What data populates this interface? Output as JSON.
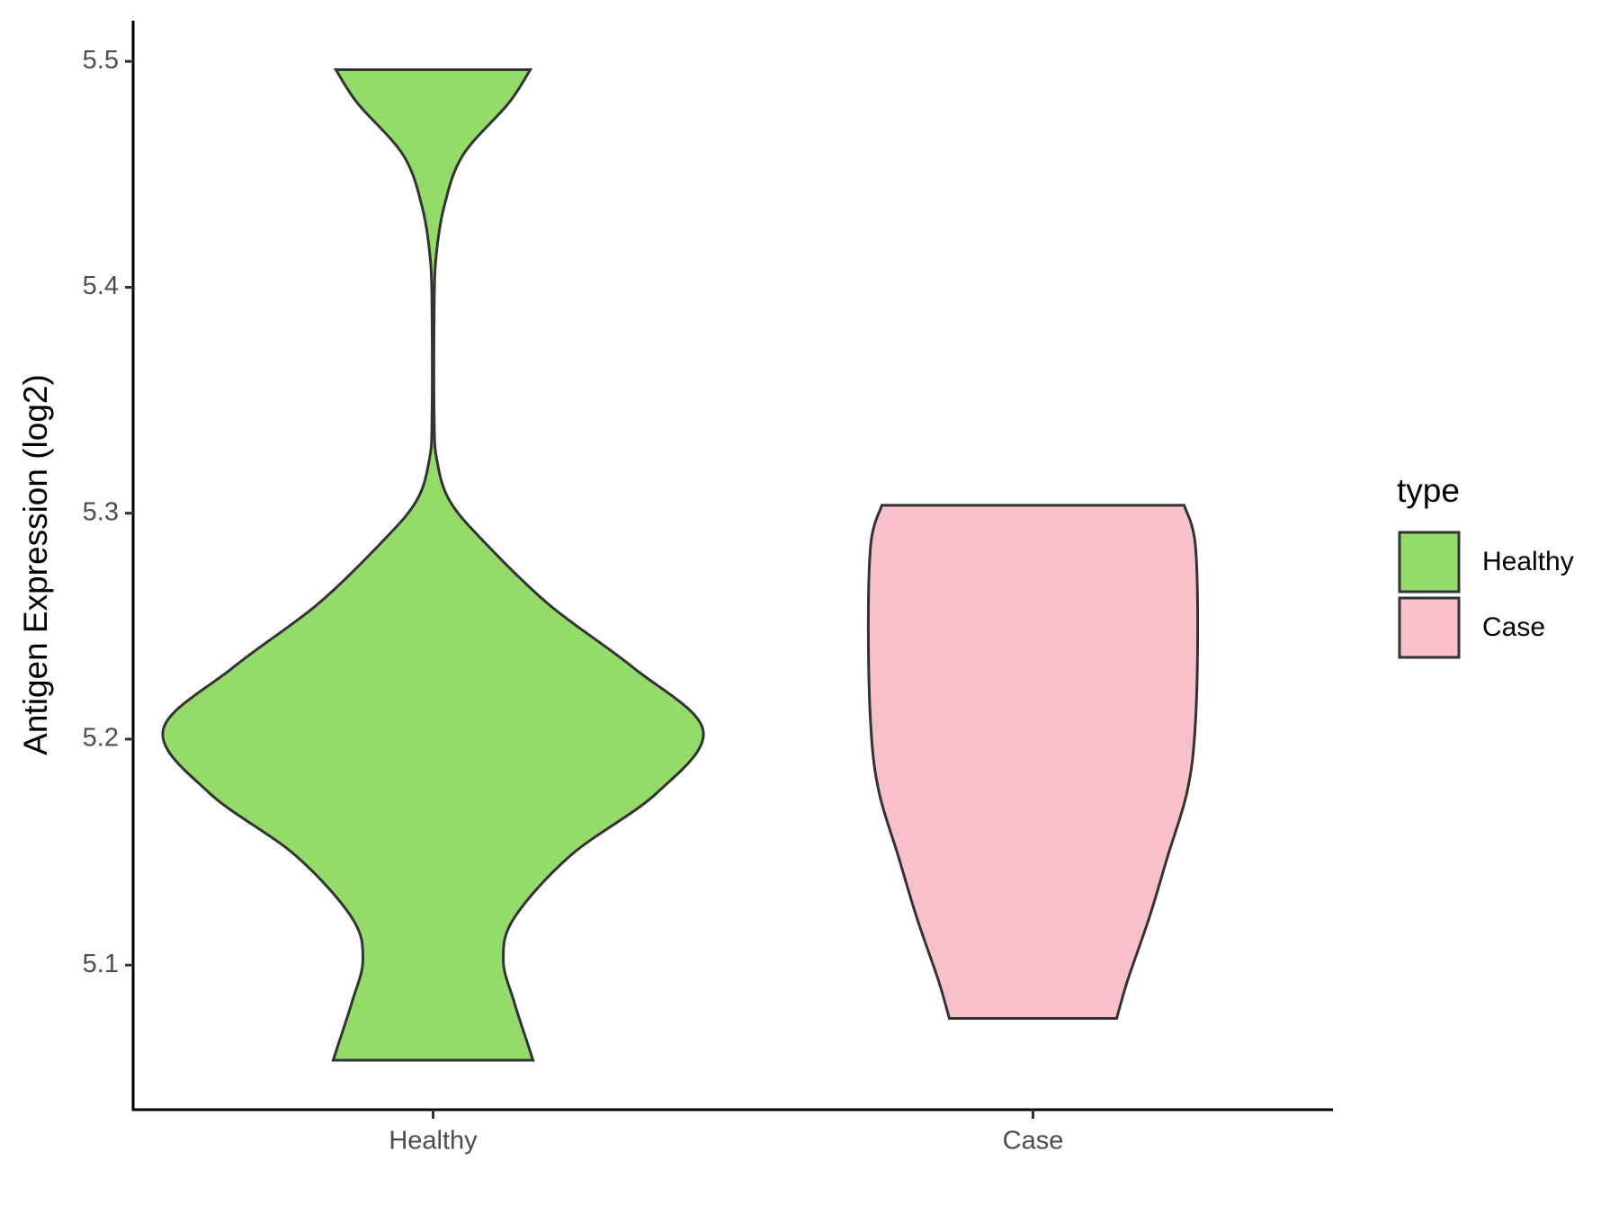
{
  "chart_data": {
    "type": "violin",
    "y_label": "Antigen Expression (log2)",
    "categories": [
      "Healthy",
      "Case"
    ],
    "ylim": [
      5.036,
      5.518
    ],
    "yticks": [
      5.1,
      5.2,
      5.3,
      5.4,
      5.5
    ],
    "legend_title": "type",
    "legend": "right",
    "series": [
      {
        "name": "Healthy",
        "color": "#93dc6a",
        "y": [
          5.4963,
          5.4815,
          5.4584,
          5.4353,
          5.4121,
          5.389,
          5.3428,
          5.3243,
          5.3058,
          5.2872,
          5.2595,
          5.2318,
          5.204,
          5.1763,
          5.1486,
          5.1208,
          5.1023,
          5.0838,
          5.0653,
          5.0579
        ],
        "density": [
          0.36,
          0.28,
          0.11,
          0.04,
          0.01,
          0.004,
          0.004,
          0.013,
          0.06,
          0.19,
          0.43,
          0.74,
          1,
          0.83,
          0.51,
          0.3,
          0.26,
          0.3,
          0.35,
          0.37
        ]
      },
      {
        "name": "Case",
        "color": "#f7c0cb",
        "y": [
          5.3035,
          5.2873,
          5.2503,
          5.204,
          5.1763,
          5.1486,
          5.1208,
          5.0931,
          5.0764
        ],
        "density": [
          0.56,
          0.6,
          0.61,
          0.6,
          0.57,
          0.5,
          0.43,
          0.35,
          0.31
        ]
      }
    ]
  }
}
